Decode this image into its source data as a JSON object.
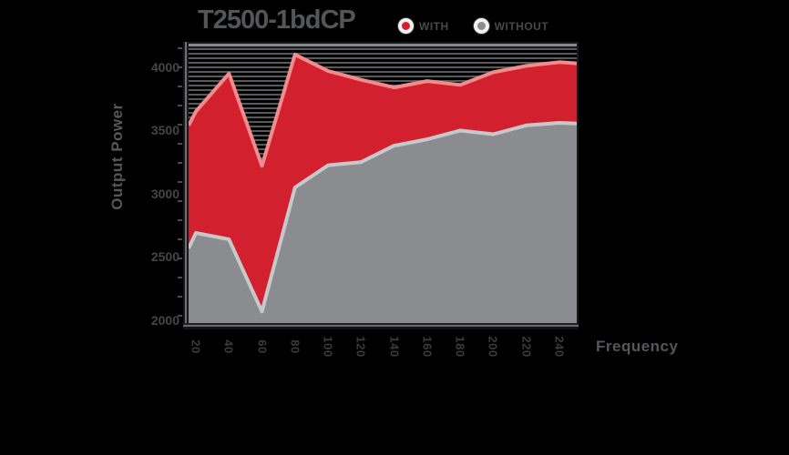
{
  "title": "T2500-1bdCP",
  "legend": {
    "items": [
      {
        "label": "WITH",
        "color": "#d2202e"
      },
      {
        "label": "WITHOUT",
        "color": "#8b8c8f"
      }
    ]
  },
  "y_axis": {
    "label": "Output Power",
    "ticks": [
      "4000",
      "3500",
      "3000",
      "2500",
      "2000"
    ]
  },
  "x_axis": {
    "label": "Frequency",
    "ticks": [
      "20",
      "40",
      "60",
      "80",
      "100",
      "120",
      "140",
      "160",
      "180",
      "200",
      "220",
      "240"
    ]
  },
  "chart_data": {
    "type": "area",
    "title": "T2500-1bdCP",
    "xlabel": "Frequency",
    "ylabel": "Output Power",
    "categories": [
      20,
      40,
      60,
      80,
      100,
      120,
      140,
      160,
      180,
      200,
      220,
      240
    ],
    "series": [
      {
        "name": "WITH",
        "fill": "#d2202e",
        "stroke": "#f28b8c",
        "values": [
          3650,
          3950,
          3220,
          4100,
          3970,
          3900,
          3840,
          3890,
          3860,
          3960,
          4010,
          4040
        ],
        "edge_left": 3540,
        "edge_right": 4030
      },
      {
        "name": "WITHOUT",
        "fill": "#8b8c8f",
        "stroke": "#c7c8ca",
        "values": [
          2690,
          2640,
          2070,
          3050,
          3225,
          3250,
          3380,
          3430,
          3500,
          3470,
          3540,
          3560
        ],
        "edge_left": 2570,
        "edge_right": 3555
      }
    ],
    "ylim": [
      2000,
      4200
    ],
    "y_tick_values": [
      4000,
      3500,
      3000,
      2500,
      2000
    ],
    "grid": "fine horizontal lines",
    "legend_position": "top",
    "colors": {
      "background": "#000000",
      "text": "#4c4d4f",
      "gridline": "#58595b",
      "axis_bar_dark": "#19191b",
      "axis_bar_core": "#87888b"
    }
  }
}
